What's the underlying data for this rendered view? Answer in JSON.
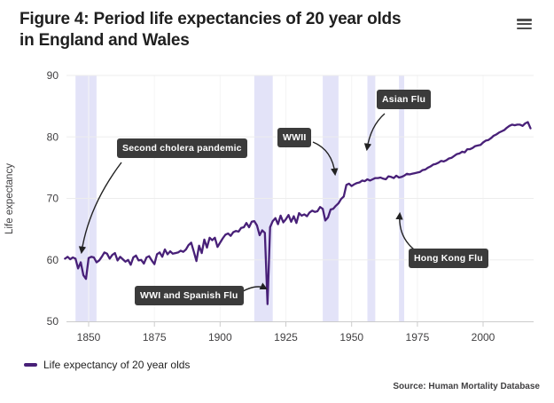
{
  "header": {
    "title_lines": [
      "Figure 4: Period life expectancies of 20 year olds",
      "in England and Wales"
    ],
    "menu_icon": "hamburger-menu-icon"
  },
  "legend": {
    "label": "Life expectancy of 20 year olds"
  },
  "source": "Source: Human Mortality Database",
  "chart_data": {
    "type": "line",
    "title": "Figure 4: Period life expectancies of 20 year olds in England and Wales",
    "xlabel": "",
    "ylabel": "Life expectancy",
    "xlim": [
      1841,
      2018
    ],
    "ylim": [
      50,
      90
    ],
    "x_ticks": [
      1850,
      1875,
      1900,
      1925,
      1950,
      1975,
      2000
    ],
    "y_ticks": [
      50,
      60,
      70,
      80,
      90
    ],
    "grid": "on",
    "legend_position": "bottom-left",
    "series": [
      {
        "name": "Life expectancy of 20 year olds",
        "start_year": 1841,
        "values": [
          60.2,
          60.5,
          60.1,
          60.4,
          60.2,
          58.6,
          59.6,
          57.5,
          56.9,
          60.3,
          60.5,
          60.4,
          59.6,
          59.9,
          60.5,
          61.2,
          61.0,
          60.2,
          60.8,
          61.1,
          59.9,
          60.5,
          60.1,
          59.7,
          60.0,
          59.2,
          60.4,
          60.7,
          59.9,
          60.0,
          59.4,
          60.4,
          60.6,
          59.9,
          59.3,
          60.9,
          61.2,
          60.5,
          61.7,
          60.9,
          61.4,
          61.0,
          61.1,
          61.2,
          61.5,
          61.3,
          61.7,
          62.4,
          62.8,
          61.3,
          59.8,
          62.3,
          61.1,
          63.3,
          62.0,
          63.6,
          63.2,
          63.6,
          62.1,
          62.8,
          63.5,
          64.1,
          64.3,
          63.9,
          64.5,
          64.7,
          64.6,
          65.2,
          65.3,
          66.0,
          65.3,
          66.2,
          66.3,
          65.6,
          64.0,
          64.8,
          64.4,
          52.8,
          65.3,
          66.3,
          66.8,
          65.8,
          67.2,
          66.1,
          66.6,
          67.3,
          66.2,
          67.1,
          66.0,
          67.6,
          67.2,
          67.4,
          67.1,
          67.7,
          68.0,
          67.8,
          67.9,
          68.6,
          68.3,
          66.4,
          66.9,
          68.2,
          68.3,
          68.8,
          69.2,
          69.9,
          70.3,
          72.2,
          72.4,
          72.0,
          72.3,
          72.5,
          72.6,
          72.9,
          72.8,
          73.1,
          72.9,
          73.1,
          73.3,
          73.3,
          73.4,
          73.2,
          73.1,
          73.6,
          73.5,
          73.3,
          73.7,
          73.4,
          73.5,
          73.7,
          74.0,
          73.9,
          74.0,
          74.1,
          74.2,
          74.3,
          74.6,
          74.7,
          75.0,
          75.2,
          75.5,
          75.6,
          75.8,
          76.1,
          76.0,
          76.2,
          76.5,
          76.6,
          76.9,
          77.2,
          77.3,
          77.6,
          77.5,
          78.0,
          78.0,
          78.2,
          78.5,
          78.6,
          78.7,
          79.1,
          79.4,
          79.5,
          79.8,
          80.2,
          80.4,
          80.7,
          80.9,
          81.1,
          81.5,
          81.8,
          82.0,
          81.9,
          82.0,
          82.0,
          81.8,
          82.2,
          82.4,
          81.4
        ]
      }
    ],
    "plot_bands": [
      {
        "label": "Second cholera pandemic",
        "from": 1845,
        "to": 1853
      },
      {
        "label": "WWI and Spanish Flu",
        "from": 1913,
        "to": 1920
      },
      {
        "label": "WWII",
        "from": 1939,
        "to": 1945
      },
      {
        "label": "Asian Flu",
        "from": 1956,
        "to": 1959
      },
      {
        "label": "Hong Kong Flu",
        "from": 1968,
        "to": 1970
      }
    ],
    "annotations": [
      {
        "label": "Second cholera pandemic",
        "box": [
          132,
          156
        ],
        "from": [
          137,
          183
        ],
        "ctrl": [
          100,
          232
        ],
        "to": [
          92,
          284
        ]
      },
      {
        "label": "WWI and Spanish Flu",
        "box": [
          152,
          322
        ],
        "from": [
          269,
          331
        ],
        "ctrl": [
          288,
          319
        ],
        "to": [
          300,
          325
        ]
      },
      {
        "label": "WWII",
        "box": [
          313,
          144
        ],
        "from": [
          353,
          160
        ],
        "ctrl": [
          375,
          169
        ],
        "to": [
          378,
          196
        ]
      },
      {
        "label": "Asian Flu",
        "box": [
          425,
          101
        ],
        "from": [
          434,
          128
        ],
        "ctrl": [
          418,
          142
        ],
        "to": [
          414,
          168
        ]
      },
      {
        "label": "Hong Kong Flu",
        "box": [
          461,
          280
        ],
        "from": [
          467,
          281
        ],
        "ctrl": [
          449,
          266
        ],
        "to": [
          451,
          241
        ]
      }
    ],
    "colors": {
      "line": "#482078",
      "band": "#e3e3f8",
      "grid": "#ededed",
      "grid_vertical": "#f4f4f4",
      "axis": "#cccccc",
      "tick_text": "#414042",
      "annotation_bg": "#3b3b3b",
      "annotation_text": "#ffffff",
      "connector": "#222222"
    }
  }
}
